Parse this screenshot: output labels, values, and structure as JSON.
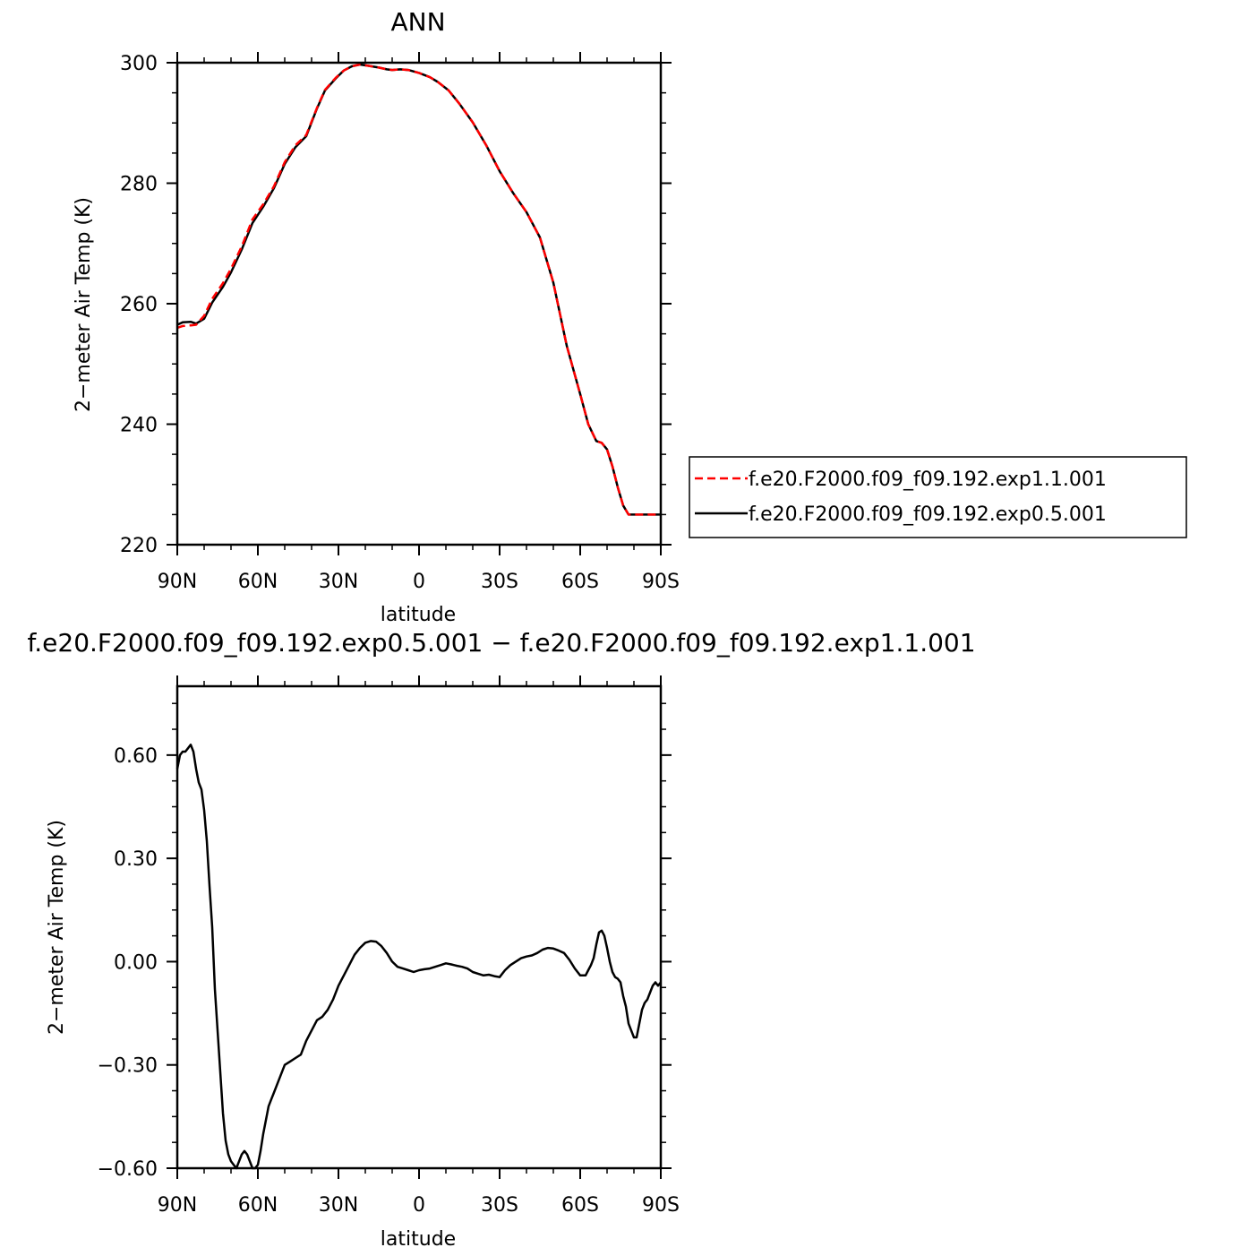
{
  "chart_data": [
    {
      "type": "line",
      "title": "ANN",
      "xlabel": "latitude",
      "ylabel": "2−meter Air Temp (K)",
      "xlim": [
        90,
        -90
      ],
      "ylim": [
        220,
        300
      ],
      "x_ticks": [
        90,
        60,
        30,
        0,
        -30,
        -60,
        -90
      ],
      "x_tick_labels": [
        "90N",
        "60N",
        "30N",
        "0",
        "30S",
        "60S",
        "90S"
      ],
      "y_ticks": [
        220,
        240,
        260,
        280,
        300
      ],
      "y_tick_labels": [
        "220",
        "240",
        "260",
        "280",
        "300"
      ],
      "grid": false,
      "legend_position": "right",
      "series": [
        {
          "name": "f.e20.F2000.f09_f09.192.exp1.1.001",
          "color": "#ff0000",
          "style": "dashed",
          "x": [
            90,
            88,
            85,
            83,
            80,
            77,
            73,
            70,
            66,
            62,
            58,
            54,
            50,
            46,
            42,
            38,
            35,
            31,
            28,
            25,
            22,
            19,
            15,
            12,
            10,
            7,
            4,
            0,
            -4,
            -7,
            -11,
            -15,
            -20,
            -25,
            -30,
            -35,
            -40,
            -45,
            -50,
            -55,
            -60,
            -63,
            -66,
            -68,
            -70,
            -72,
            -74,
            -76,
            -78,
            -80,
            -82,
            -84,
            -86,
            -88,
            -90
          ],
          "y": [
            256,
            256.3,
            256.4,
            256.5,
            258,
            260.8,
            263.4,
            265.8,
            269.5,
            274,
            276.5,
            279.5,
            283.5,
            286.3,
            288,
            292.5,
            295.5,
            297.5,
            298.7,
            299.4,
            299.7,
            299.5,
            299.2,
            298.9,
            298.8,
            298.9,
            298.8,
            298.3,
            297.6,
            296.8,
            295.4,
            293.2,
            290.1,
            286.3,
            282,
            278.4,
            275.2,
            271,
            263.5,
            253,
            245,
            240,
            237.2,
            236.9,
            235.8,
            233,
            229.5,
            226.5,
            225,
            225,
            225,
            225,
            225,
            225,
            225
          ]
        },
        {
          "name": "f.e20.F2000.f09_f09.192.exp0.5.001",
          "color": "#000000",
          "style": "solid",
          "x": [
            90,
            88,
            85,
            83,
            80,
            77,
            73,
            70,
            66,
            62,
            58,
            54,
            50,
            46,
            42,
            38,
            35,
            31,
            28,
            25,
            22,
            19,
            15,
            12,
            10,
            7,
            4,
            0,
            -4,
            -7,
            -11,
            -15,
            -20,
            -25,
            -30,
            -35,
            -40,
            -45,
            -50,
            -55,
            -60,
            -63,
            -66,
            -68,
            -70,
            -72,
            -74,
            -76,
            -78,
            -80,
            -82,
            -84,
            -86,
            -88,
            -90
          ],
          "y": [
            256.5,
            256.9,
            257,
            256.7,
            257.5,
            260.2,
            262.8,
            265.2,
            269,
            273.4,
            276.1,
            279.2,
            283.2,
            286,
            287.8,
            292.4,
            295.4,
            297.4,
            298.7,
            299.4,
            299.7,
            299.5,
            299.2,
            298.9,
            298.8,
            298.9,
            298.8,
            298.3,
            297.6,
            296.8,
            295.4,
            293.2,
            290.1,
            286.3,
            282,
            278.4,
            275.2,
            271,
            263.5,
            253,
            245,
            240,
            237.2,
            236.9,
            235.8,
            233,
            229.5,
            226.5,
            225,
            225,
            225,
            225,
            225,
            225,
            225
          ]
        }
      ]
    },
    {
      "type": "line",
      "title": "f.e20.F2000.f09_f09.192.exp0.5.001 − f.e20.F2000.f09_f09.192.exp1.1.001",
      "xlabel": "latitude",
      "ylabel": "2−meter Air Temp (K)",
      "xlim": [
        90,
        -90
      ],
      "ylim": [
        -0.6,
        0.8
      ],
      "x_ticks": [
        90,
        60,
        30,
        0,
        -30,
        -60,
        -90
      ],
      "x_tick_labels": [
        "90N",
        "60N",
        "30N",
        "0",
        "30S",
        "60S",
        "90S"
      ],
      "y_ticks": [
        -0.6,
        -0.3,
        0.0,
        0.3,
        0.6
      ],
      "y_tick_labels": [
        "−0.60",
        "−0.30",
        "0.00",
        "0.30",
        "0.60"
      ],
      "grid": false,
      "series": [
        {
          "color": "#000000",
          "style": "solid",
          "x": [
            90,
            89,
            88,
            87,
            86,
            85,
            84,
            83,
            82,
            81,
            80,
            79,
            78,
            77,
            76,
            75,
            74,
            73,
            72,
            71,
            70,
            69,
            68,
            67,
            66,
            65,
            64,
            63,
            62,
            61,
            60,
            59,
            58,
            57,
            56,
            55,
            54,
            52,
            50,
            48,
            46,
            44,
            42,
            40,
            38,
            36,
            34,
            32,
            30,
            28,
            26,
            24,
            22,
            20,
            18,
            16,
            14,
            12,
            10,
            8,
            6,
            4,
            2,
            0,
            -2,
            -4,
            -6,
            -8,
            -10,
            -12,
            -14,
            -16,
            -18,
            -20,
            -22,
            -24,
            -26,
            -28,
            -30,
            -32,
            -34,
            -36,
            -38,
            -40,
            -42,
            -44,
            -46,
            -48,
            -50,
            -52,
            -54,
            -56,
            -58,
            -60,
            -62,
            -63,
            -64,
            -65,
            -66,
            -67,
            -68,
            -69,
            -70,
            -71,
            -72,
            -73,
            -74,
            -75,
            -76,
            -77,
            -78,
            -79,
            -80,
            -81,
            -82,
            -83,
            -84,
            -85,
            -86,
            -87,
            -88,
            -89,
            -90
          ],
          "y": [
            0.56,
            0.6,
            0.61,
            0.61,
            0.62,
            0.63,
            0.61,
            0.56,
            0.52,
            0.5,
            0.44,
            0.35,
            0.22,
            0.1,
            -0.08,
            -0.2,
            -0.32,
            -0.44,
            -0.52,
            -0.56,
            -0.58,
            -0.59,
            -0.6,
            -0.58,
            -0.56,
            -0.55,
            -0.56,
            -0.58,
            -0.6,
            -0.6,
            -0.59,
            -0.55,
            -0.5,
            -0.46,
            -0.42,
            -0.4,
            -0.38,
            -0.34,
            -0.3,
            -0.29,
            -0.28,
            -0.27,
            -0.23,
            -0.2,
            -0.17,
            -0.16,
            -0.14,
            -0.11,
            -0.07,
            -0.04,
            -0.01,
            0.02,
            0.04,
            0.055,
            0.06,
            0.058,
            0.045,
            0.025,
            0.0,
            -0.015,
            -0.02,
            -0.025,
            -0.03,
            -0.025,
            -0.022,
            -0.02,
            -0.015,
            -0.01,
            -0.005,
            -0.008,
            -0.012,
            -0.015,
            -0.02,
            -0.03,
            -0.035,
            -0.04,
            -0.038,
            -0.042,
            -0.045,
            -0.025,
            -0.01,
            0.0,
            0.01,
            0.015,
            0.018,
            0.025,
            0.035,
            0.04,
            0.038,
            0.032,
            0.025,
            0.005,
            -0.02,
            -0.04,
            -0.04,
            -0.025,
            -0.01,
            0.01,
            0.05,
            0.085,
            0.09,
            0.075,
            0.04,
            0.0,
            -0.03,
            -0.045,
            -0.05,
            -0.06,
            -0.1,
            -0.13,
            -0.18,
            -0.2,
            -0.22,
            -0.22,
            -0.18,
            -0.14,
            -0.12,
            -0.11,
            -0.09,
            -0.07,
            -0.06,
            -0.07,
            -0.06
          ]
        }
      ]
    }
  ],
  "legend": {
    "entries": [
      "f.e20.F2000.f09_f09.192.exp1.1.001",
      "f.e20.F2000.f09_f09.192.exp0.5.001"
    ]
  }
}
